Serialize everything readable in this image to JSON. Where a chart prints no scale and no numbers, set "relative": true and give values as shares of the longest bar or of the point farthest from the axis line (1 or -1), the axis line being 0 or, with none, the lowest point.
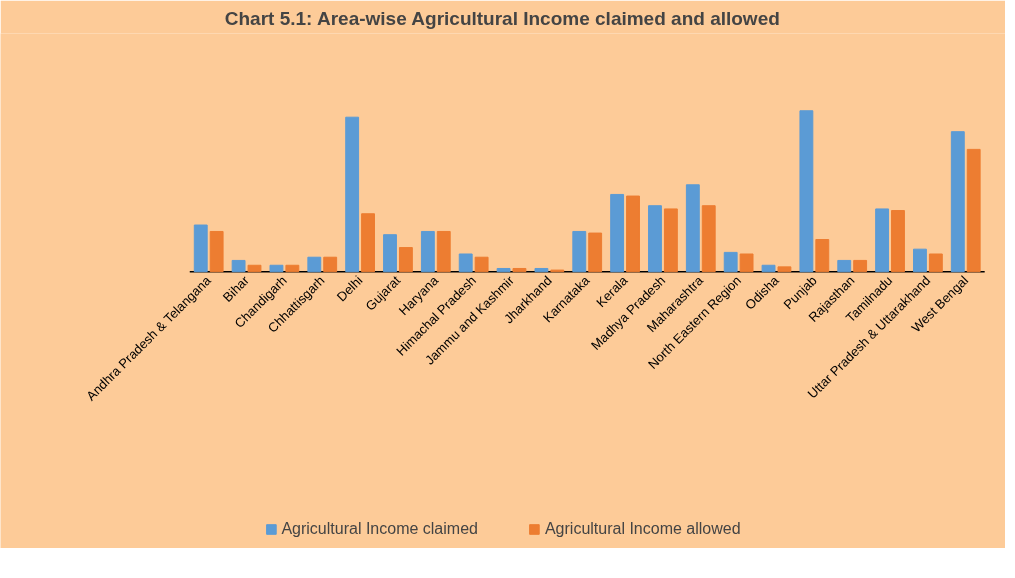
{
  "chart_data": {
    "type": "bar",
    "title": "Chart 5.1: Area-wise Agricultural Income claimed and allowed",
    "relative": true,
    "legend": "bottom",
    "categories": [
      "Andhra Pradesh & Telangana",
      "Bihar",
      "Chandigarh",
      "Chhattisgarh",
      "Delhi",
      "Gujarat",
      "Haryana",
      "Himachal Pradesh",
      "Jammu and Kashmir",
      "Jharkhand",
      "Karnataka",
      "Kerala",
      "Madhya Pradesh",
      "Maharashtra",
      "North Eastern Region",
      "Odisha",
      "Punjab",
      "Rajasthan",
      "Tamilnadu",
      "Uttar Pradesh & Uttarakhand",
      "West Bengal"
    ],
    "series": [
      {
        "name": "Agricultural Income claimed",
        "color": "#5b9bd5",
        "values": [
          0.29,
          0.07,
          0.04,
          0.09,
          0.96,
          0.23,
          0.25,
          0.11,
          0.02,
          0.02,
          0.25,
          0.48,
          0.41,
          0.54,
          0.12,
          0.04,
          1,
          0.07,
          0.39,
          0.14,
          0.87
        ]
      },
      {
        "name": "Agricultural Income allowed",
        "color": "#ed7d31",
        "values": [
          0.25,
          0.04,
          0.04,
          0.09,
          0.36,
          0.15,
          0.25,
          0.09,
          0.02,
          0.01,
          0.24,
          0.47,
          0.39,
          0.41,
          0.11,
          0.03,
          0.2,
          0.07,
          0.38,
          0.11,
          0.76
        ]
      }
    ]
  }
}
